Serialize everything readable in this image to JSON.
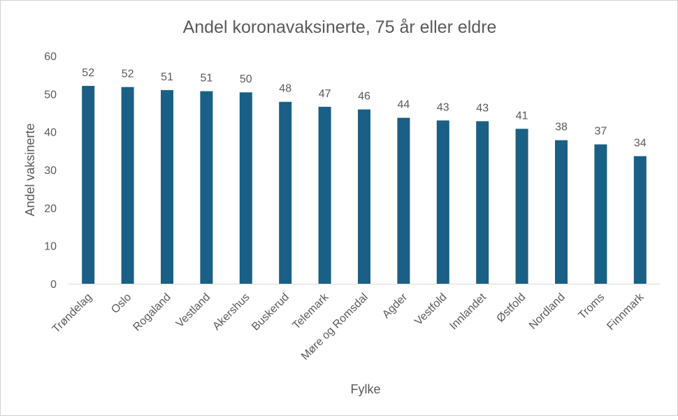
{
  "chart_data": {
    "type": "bar",
    "title": "Andel koronavaksinerte, 75 år eller eldre",
    "xlabel": "Fylke",
    "ylabel": "Andel vaksinerte",
    "ylim": [
      0,
      60
    ],
    "yticks": [
      0,
      10,
      20,
      30,
      40,
      50,
      60
    ],
    "grid": false,
    "legend": "none",
    "bar_color": "#1a5f85",
    "categories": [
      "Trøndelag",
      "Oslo",
      "Rogaland",
      "Vestland",
      "Akershus",
      "Buskerud",
      "Telemark",
      "Møre og Romsdal",
      "Agder",
      "Vestfold",
      "Innlandet",
      "Østfold",
      "Nordland",
      "Troms",
      "Finnmark"
    ],
    "values": [
      52.1,
      51.8,
      51.0,
      50.7,
      50.4,
      47.9,
      46.6,
      45.9,
      43.7,
      43.0,
      42.8,
      40.8,
      37.8,
      36.7,
      33.6
    ],
    "data_labels": [
      "52",
      "52",
      "51",
      "51",
      "50",
      "48",
      "47",
      "46",
      "44",
      "43",
      "43",
      "41",
      "38",
      "37",
      "34"
    ]
  }
}
